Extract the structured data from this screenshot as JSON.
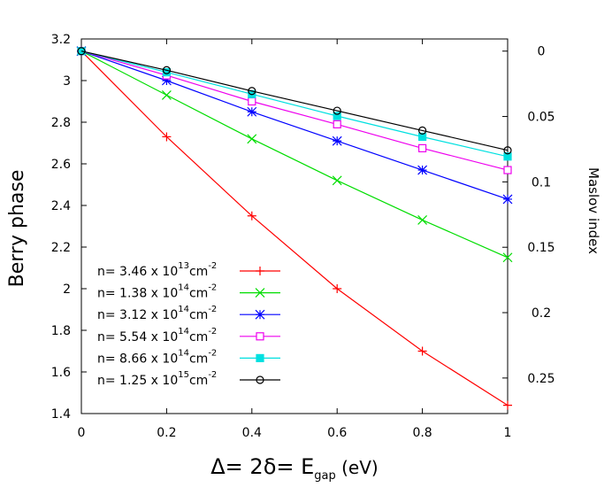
{
  "chart_data": {
    "type": "line",
    "title": "",
    "xlabel": {
      "main": "Δ= 2δ= E",
      "sub": "gap",
      "unit": " (eV)"
    },
    "ylabel": "Berry phase",
    "y2label": "Maslov index",
    "xlim": [
      0,
      1
    ],
    "ylim": [
      1.4,
      3.2
    ],
    "y2lim": [
      0,
      0.28
    ],
    "x_ticks": [
      "0",
      "0.2",
      "0.4",
      "0.6",
      "0.8",
      "1"
    ],
    "y_ticks": [
      "1.4",
      "1.6",
      "1.8",
      "2",
      "2.2",
      "2.4",
      "2.6",
      "2.8",
      "3",
      "3.2"
    ],
    "y2_ticks": [
      "0",
      "0.05",
      "0.1",
      "0.15",
      "0.2",
      "0.25"
    ],
    "x": [
      0,
      0.2,
      0.4,
      0.6,
      0.8,
      1
    ],
    "grid": false,
    "legend_position": "bottom-left",
    "series": [
      {
        "name_pre": "n= 3.46 x 10",
        "exp": "13",
        "unit": "cm",
        "unit_exp": "-2",
        "color": "#ff0000",
        "marker": "plus",
        "values": [
          3.1416,
          2.73,
          2.35,
          2.0,
          1.7,
          1.44
        ]
      },
      {
        "name_pre": "n= 1.38 x 10",
        "exp": "14",
        "unit": "cm",
        "unit_exp": "-2",
        "color": "#00dd00",
        "marker": "cross",
        "values": [
          3.1416,
          2.93,
          2.72,
          2.52,
          2.33,
          2.15
        ]
      },
      {
        "name_pre": "n= 3.12 x 10",
        "exp": "14",
        "unit": "cm",
        "unit_exp": "-2",
        "color": "#0000ff",
        "marker": "star",
        "values": [
          3.1416,
          3.0,
          2.85,
          2.71,
          2.57,
          2.43
        ]
      },
      {
        "name_pre": "n= 5.54 x 10",
        "exp": "14",
        "unit": "cm",
        "unit_exp": "-2",
        "color": "#ee00ee",
        "marker": "open-square",
        "values": [
          3.1416,
          3.025,
          2.9,
          2.79,
          2.675,
          2.57
        ]
      },
      {
        "name_pre": "n= 8.66 x 10",
        "exp": "14",
        "unit": "cm",
        "unit_exp": "-2",
        "color": "#00e0e0",
        "marker": "filled-square",
        "values": [
          3.1416,
          3.04,
          2.935,
          2.83,
          2.73,
          2.635
        ]
      },
      {
        "name_pre": "n= 1.25 x 10",
        "exp": "15",
        "unit": "cm",
        "unit_exp": "-2",
        "color": "#000000",
        "marker": "open-circle",
        "values": [
          3.1416,
          3.05,
          2.95,
          2.855,
          2.76,
          2.665
        ]
      }
    ]
  }
}
